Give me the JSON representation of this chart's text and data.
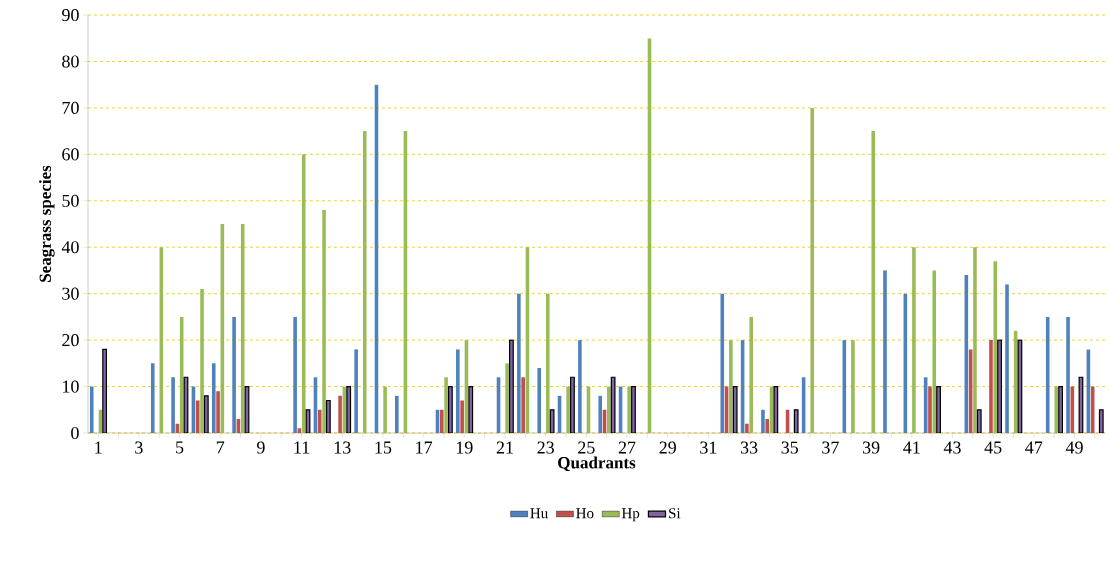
{
  "chart_data": {
    "type": "bar",
    "xlabel": "Quadrants",
    "ylabel": "Seagrass species",
    "categories": [
      "1",
      null,
      "3",
      null,
      "5",
      null,
      "7",
      null,
      "9",
      null,
      "11",
      null,
      "13",
      null,
      "15",
      null,
      "17",
      null,
      "19",
      null,
      "21",
      null,
      "23",
      null,
      "25",
      null,
      "27",
      null,
      "29",
      null,
      "31",
      null,
      "33",
      null,
      "35",
      null,
      "37",
      null,
      "39",
      null,
      "41",
      null,
      "43",
      null,
      "45",
      null,
      "47",
      null,
      "49",
      null
    ],
    "series": [
      {
        "name": "Hu",
        "color": "#4f81bd",
        "values": [
          10,
          null,
          null,
          15,
          12,
          10,
          15,
          25,
          null,
          null,
          25,
          12,
          null,
          18,
          75,
          8,
          null,
          5,
          18,
          null,
          12,
          30,
          14,
          8,
          20,
          8,
          10,
          null,
          null,
          null,
          null,
          30,
          20,
          5,
          null,
          12,
          null,
          20,
          null,
          35,
          30,
          12,
          null,
          34,
          null,
          32,
          null,
          25,
          25,
          18
        ]
      },
      {
        "name": "Ho",
        "color": "#c0504d",
        "values": [
          null,
          null,
          null,
          null,
          2,
          7,
          9,
          3,
          null,
          null,
          1,
          5,
          8,
          null,
          null,
          null,
          null,
          5,
          7,
          null,
          null,
          12,
          null,
          null,
          null,
          5,
          null,
          null,
          null,
          null,
          null,
          10,
          2,
          3,
          5,
          null,
          null,
          null,
          null,
          null,
          null,
          10,
          null,
          18,
          20,
          null,
          null,
          null,
          10,
          10
        ]
      },
      {
        "name": "Hp",
        "color": "#9bbb59",
        "values": [
          5,
          null,
          null,
          40,
          25,
          31,
          45,
          45,
          null,
          null,
          60,
          48,
          10,
          65,
          10,
          65,
          null,
          12,
          20,
          null,
          15,
          40,
          30,
          10,
          10,
          10,
          10,
          85,
          null,
          null,
          null,
          20,
          25,
          10,
          null,
          70,
          null,
          20,
          65,
          null,
          40,
          35,
          null,
          40,
          37,
          22,
          null,
          10,
          null,
          null
        ]
      },
      {
        "name": "Si",
        "color": "#8064a2",
        "values": [
          18,
          null,
          null,
          null,
          12,
          8,
          null,
          10,
          null,
          null,
          5,
          7,
          10,
          null,
          null,
          null,
          null,
          10,
          10,
          null,
          20,
          null,
          5,
          12,
          null,
          12,
          10,
          null,
          null,
          null,
          null,
          10,
          null,
          10,
          5,
          null,
          null,
          null,
          null,
          null,
          null,
          10,
          null,
          5,
          20,
          20,
          null,
          10,
          12,
          5
        ]
      }
    ],
    "ylim": [
      0,
      90
    ],
    "yticks": [
      0,
      10,
      20,
      30,
      40,
      50,
      60,
      70,
      80,
      90
    ],
    "grid": "y",
    "legend": "bottom"
  }
}
